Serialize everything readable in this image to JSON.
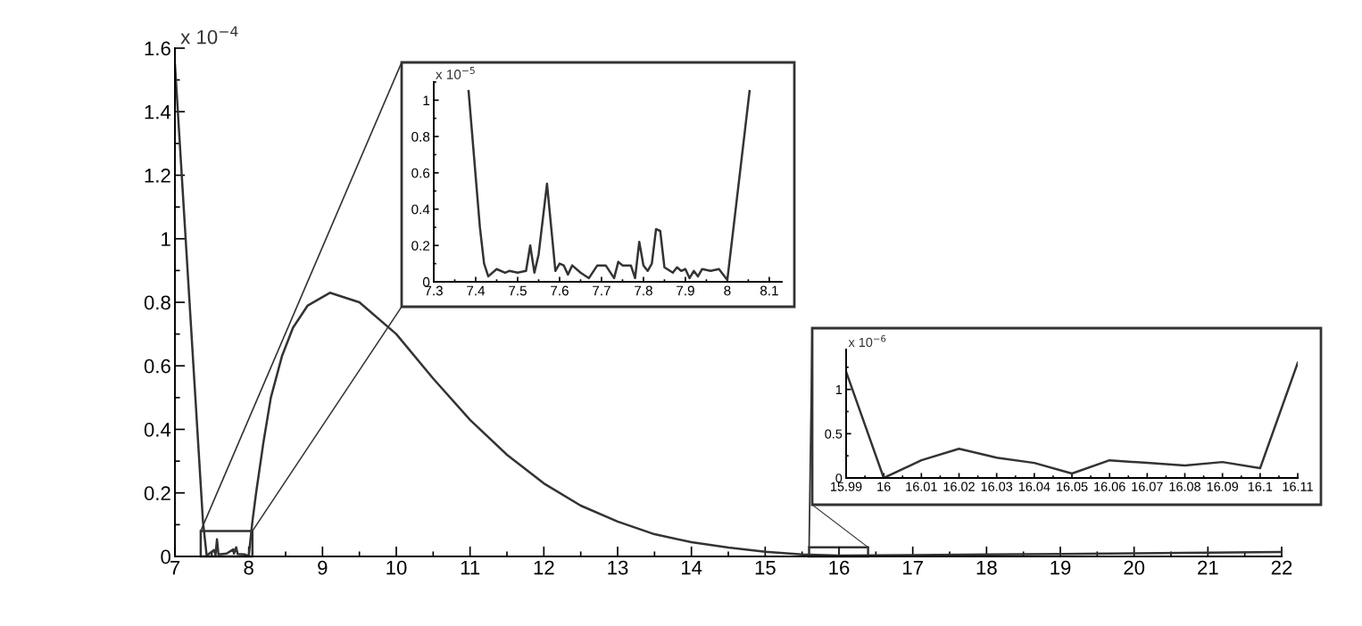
{
  "chart_data": [
    {
      "type": "line",
      "annotations": [
        "x 10$^{−4}$"
      ],
      "xlim": [
        7,
        22
      ],
      "ylim": [
        0,
        1.6
      ],
      "xticks": [
        7,
        8,
        9,
        10,
        11,
        12,
        13,
        14,
        15,
        16,
        17,
        18,
        19,
        20,
        21,
        22
      ],
      "yticks": [
        0,
        0.2,
        0.4,
        0.6,
        0.8,
        1,
        1.2,
        1.4,
        1.6
      ],
      "series": [
        {
          "color": "#333333",
          "x": [
            7,
            7.38,
            7.43,
            7.53,
            7.55,
            7.57,
            7.59,
            7.7,
            7.79,
            7.8,
            7.83,
            7.85,
            7.95,
            8.0,
            8.05,
            8.1,
            8.2,
            8.3,
            8.45,
            8.6,
            8.8,
            9.1,
            9.5,
            10,
            10.5,
            11,
            11.5,
            12,
            12.5,
            13,
            13.5,
            14,
            14.5,
            15,
            15.5,
            16,
            17,
            18,
            19,
            20,
            21,
            22
          ],
          "values": [
            1.55,
            0.11,
            0.003,
            0.02,
            0.005,
            0.054,
            0.006,
            0.009,
            0.022,
            0.009,
            0.029,
            0.008,
            0.006,
            0.001,
            0.11,
            0.2,
            0.36,
            0.5,
            0.63,
            0.72,
            0.79,
            0.83,
            0.8,
            0.7,
            0.56,
            0.43,
            0.32,
            0.23,
            0.16,
            0.11,
            0.07,
            0.045,
            0.028,
            0.015,
            0.006,
            0.003,
            0.004,
            0.006,
            0.008,
            0.01,
            0.012,
            0.014
          ]
        }
      ]
    },
    {
      "type": "line",
      "annotations": [
        "x 10$^{−5}$"
      ],
      "xlim": [
        7.3,
        8.13
      ],
      "ylim": [
        0,
        1.1
      ],
      "xticks": [
        7.3,
        7.4,
        7.5,
        7.6,
        7.7,
        7.8,
        7.9,
        8,
        8.1
      ],
      "yticks": [
        0,
        0.2,
        0.4,
        0.6,
        0.8,
        1
      ],
      "series": [
        {
          "color": "#333333",
          "x": [
            7.383,
            7.41,
            7.42,
            7.43,
            7.45,
            7.47,
            7.48,
            7.5,
            7.52,
            7.53,
            7.54,
            7.55,
            7.57,
            7.59,
            7.6,
            7.61,
            7.62,
            7.63,
            7.65,
            7.67,
            7.69,
            7.71,
            7.73,
            7.74,
            7.75,
            7.77,
            7.78,
            7.79,
            7.8,
            7.81,
            7.82,
            7.83,
            7.84,
            7.85,
            7.87,
            7.88,
            7.89,
            7.9,
            7.91,
            7.92,
            7.93,
            7.94,
            7.96,
            7.98,
            8.0,
            8.053
          ],
          "values": [
            1.05,
            0.3,
            0.1,
            0.03,
            0.07,
            0.05,
            0.06,
            0.05,
            0.06,
            0.2,
            0.05,
            0.15,
            0.54,
            0.06,
            0.1,
            0.09,
            0.04,
            0.09,
            0.05,
            0.02,
            0.09,
            0.09,
            0.02,
            0.11,
            0.09,
            0.09,
            0.02,
            0.22,
            0.09,
            0.06,
            0.1,
            0.29,
            0.28,
            0.08,
            0.05,
            0.08,
            0.06,
            0.07,
            0.02,
            0.06,
            0.03,
            0.07,
            0.06,
            0.07,
            0.01,
            1.05
          ]
        }
      ]
    },
    {
      "type": "line",
      "annotations": [
        "x 10$^{−6}$"
      ],
      "xlim": [
        15.99,
        16.11
      ],
      "ylim": [
        0,
        1.45
      ],
      "xticks": [
        15.99,
        16,
        16.01,
        16.02,
        16.03,
        16.04,
        16.05,
        16.06,
        16.07,
        16.08,
        16.09,
        16.1,
        16.11
      ],
      "yticks": [
        0,
        0.5,
        1
      ],
      "series": [
        {
          "color": "#333333",
          "x": [
            15.99,
            16,
            16.01,
            16.02,
            16.03,
            16.04,
            16.05,
            16.06,
            16.07,
            16.08,
            16.09,
            16.1,
            16.11
          ],
          "values": [
            1.2,
            0,
            0.2,
            0.33,
            0.23,
            0.17,
            0.05,
            0.2,
            0.17,
            0.14,
            0.18,
            0.11,
            1.3
          ]
        }
      ]
    }
  ]
}
